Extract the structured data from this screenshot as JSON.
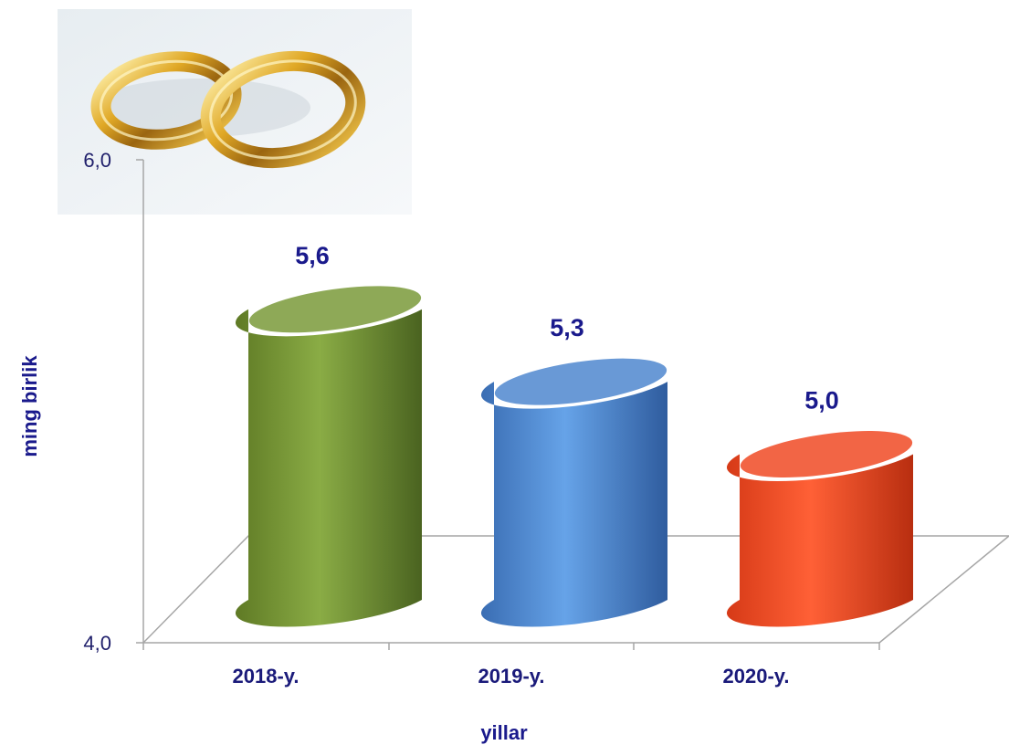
{
  "chart_data": {
    "type": "bar",
    "categories": [
      "2018-y.",
      "2019-y.",
      "2020-y."
    ],
    "values": [
      5.6,
      5.3,
      5.0
    ],
    "data_labels": [
      "5,6",
      "5,3",
      "5,0"
    ],
    "title": "",
    "xlabel": "yillar",
    "ylabel": "ming birlik",
    "ylim": [
      4.0,
      6.0
    ],
    "y_ticks": [
      "4,0",
      "6,0"
    ],
    "grid": false,
    "legend": "none",
    "bar_shape": "cylinder",
    "colors": [
      "#7a9a3a",
      "#4f87cf",
      "#f04a25"
    ],
    "decoration": "wedding-rings-image"
  }
}
